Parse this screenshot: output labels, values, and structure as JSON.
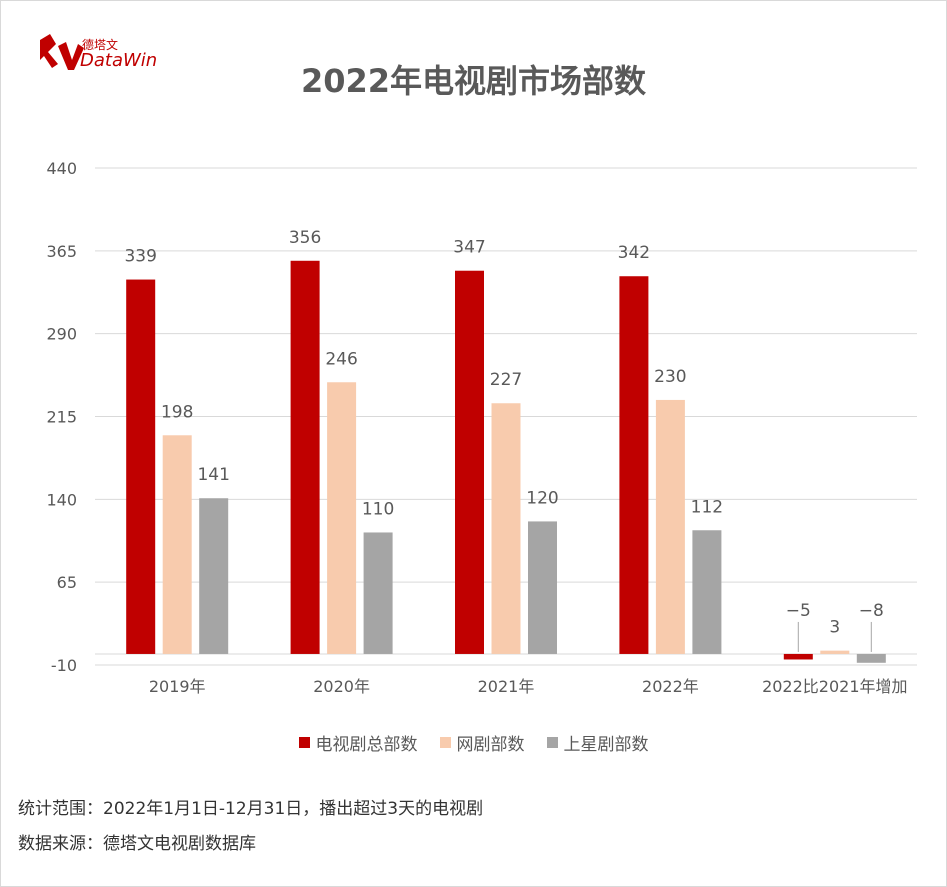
{
  "logo": {
    "name_cn": "德塔文",
    "name_en": "DataWin",
    "icon": "datawin-logo-icon"
  },
  "title": "2022年电视剧市场部数",
  "chart_data": {
    "type": "bar",
    "categories": [
      "2019年",
      "2020年",
      "2021年",
      "2022年",
      "2022比2021年增加"
    ],
    "series": [
      {
        "name": "电视剧总部数",
        "color": "#c00000",
        "values": [
          339,
          356,
          347,
          342,
          -5
        ],
        "labels": [
          "339",
          "356",
          "347",
          "342",
          "−5"
        ]
      },
      {
        "name": "网剧部数",
        "color": "#f8cbad",
        "values": [
          198,
          246,
          227,
          230,
          3
        ],
        "labels": [
          "198",
          "246",
          "227",
          "230",
          "3"
        ]
      },
      {
        "name": "上星剧部数",
        "color": "#a5a5a5",
        "values": [
          141,
          110,
          120,
          112,
          -8
        ],
        "labels": [
          "141",
          "110",
          "120",
          "112",
          "−8"
        ]
      }
    ],
    "yticks": [
      "440",
      "365",
      "290",
      "215",
      "140",
      "65",
      "-10"
    ],
    "ylim": [
      -10,
      440
    ],
    "grid": true,
    "legend_position": "bottom"
  },
  "footnotes": {
    "scope": "统计范围：2022年1月1日-12月31日，播出超过3天的电视剧",
    "source": "数据来源：德塔文电视剧数据库"
  }
}
